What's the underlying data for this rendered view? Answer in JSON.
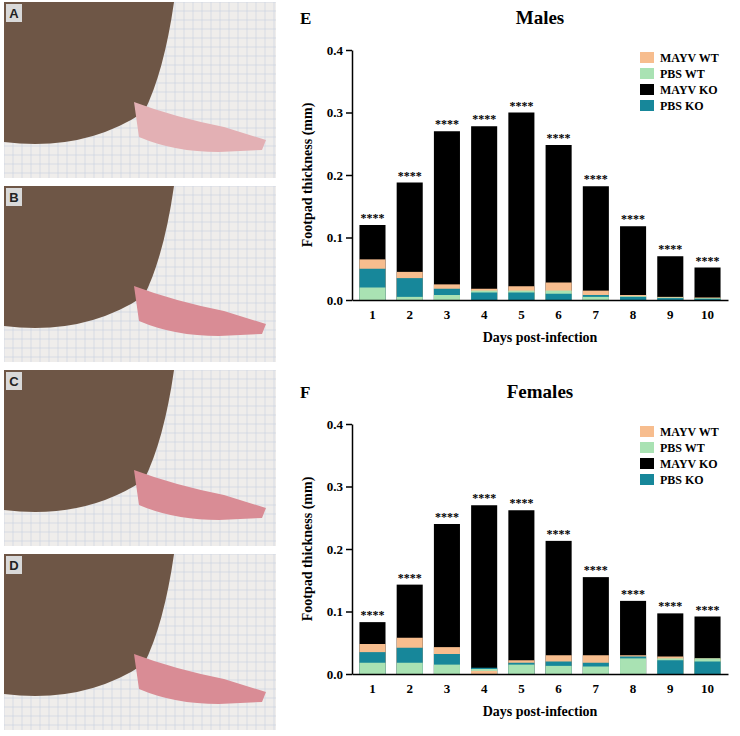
{
  "photo_panels": [
    "A",
    "B",
    "C",
    "D"
  ],
  "chart_data": [
    {
      "type": "bar",
      "panel": "E",
      "title": "Males",
      "x_label": "Days post-infection",
      "y_label": "Footpad thickness (mm)",
      "categories": [
        "1",
        "2",
        "3",
        "4",
        "5",
        "6",
        "7",
        "8",
        "9",
        "10"
      ],
      "series": [
        {
          "name": "MAYV WT",
          "color": "#f7bd8e",
          "values": [
            0.065,
            0.045,
            0.025,
            0.018,
            0.022,
            0.028,
            0.015,
            0.008,
            0.005,
            0.004
          ]
        },
        {
          "name": "PBS WT",
          "color": "#a9e2b3",
          "values": [
            0.02,
            0.005,
            0.008,
            0.015,
            0.015,
            0.015,
            0.005,
            0.006,
            0.004,
            0.003
          ]
        },
        {
          "name": "MAYV KO",
          "color": "#000000",
          "values": [
            0.12,
            0.188,
            0.27,
            0.278,
            0.3,
            0.248,
            0.182,
            0.118,
            0.07,
            0.052
          ]
        },
        {
          "name": "PBS KO",
          "color": "#17879a",
          "values": [
            0.05,
            0.035,
            0.018,
            0.012,
            0.012,
            0.01,
            0.008,
            0.005,
            0.003,
            0.002
          ]
        }
      ],
      "annotations": [
        "****",
        "****",
        "****",
        "****",
        "****",
        "****",
        "****",
        "****",
        "****",
        "****"
      ],
      "ylim": [
        0,
        0.4
      ],
      "yticks": [
        {
          "value": 0,
          "label": "0.0"
        },
        0.1,
        0.2,
        0.3,
        0.4
      ],
      "legend": "upper right"
    },
    {
      "type": "bar",
      "panel": "F",
      "title": "Females",
      "x_label": "Days post-infection",
      "y_label": "Footpad thickness (mm)",
      "categories": [
        "1",
        "2",
        "3",
        "4",
        "5",
        "6",
        "7",
        "8",
        "9",
        "10"
      ],
      "series": [
        {
          "name": "MAYV WT",
          "color": "#f7bd8e",
          "values": [
            0.048,
            0.058,
            0.043,
            0.005,
            0.022,
            0.03,
            0.03,
            0.03,
            0.028,
            0.025
          ]
        },
        {
          "name": "PBS WT",
          "color": "#a9e2b3",
          "values": [
            0.018,
            0.018,
            0.015,
            0.008,
            0.015,
            0.013,
            0.012,
            0.025,
            0.025,
            0.025
          ]
        },
        {
          "name": "MAYV KO",
          "color": "#000000",
          "values": [
            0.083,
            0.143,
            0.24,
            0.27,
            0.262,
            0.213,
            0.155,
            0.117,
            0.097,
            0.092
          ]
        },
        {
          "name": "PBS KO",
          "color": "#17879a",
          "values": [
            0.035,
            0.042,
            0.032,
            0.01,
            0.018,
            0.02,
            0.018,
            0.028,
            0.022,
            0.02
          ]
        }
      ],
      "annotations": [
        "****",
        "****",
        "****",
        "****",
        "****",
        "****",
        "****",
        "****",
        "****",
        "****"
      ],
      "ylim": [
        0,
        0.4
      ],
      "yticks": [
        {
          "value": 0,
          "label": "0.0"
        },
        0.1,
        0.2,
        0.3,
        0.4
      ],
      "legend": "upper right"
    }
  ]
}
